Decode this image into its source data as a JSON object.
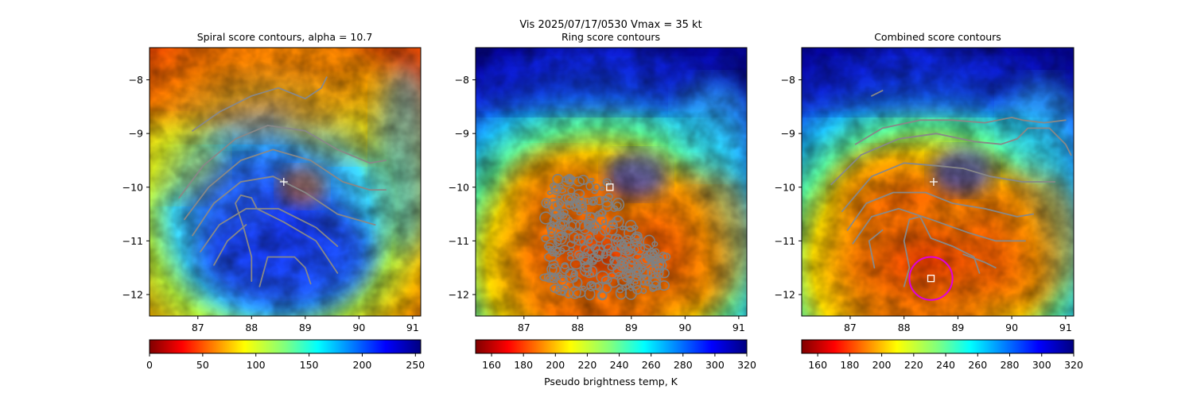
{
  "suptitle": "Vis  2025/07/17/0530    Vmax = 35 kt",
  "colorbar_shared_label": "Pseudo brightness temp, K",
  "chart_data": [
    {
      "type": "heatmap",
      "title": "Spiral score contours, alpha = 10.7",
      "xlim": [
        86.1,
        91.15
      ],
      "ylim": [
        -12.4,
        -7.4
      ],
      "xticks": [
        87,
        88,
        89,
        90,
        91
      ],
      "yticks": [
        -8,
        -9,
        -10,
        -11,
        -12
      ],
      "colormap": "jet_r",
      "colorbar": {
        "min": 0,
        "max": 255,
        "ticks": [
          0,
          50,
          100,
          150,
          200,
          250
        ],
        "label": ""
      },
      "markers": [
        {
          "shape": "plus",
          "lon": 88.6,
          "lat": -9.9,
          "color": "#ffffff"
        }
      ],
      "contour_color": "#888888",
      "contours": [
        [
          [
            86.9,
            -8.95
          ],
          [
            87.4,
            -8.6
          ],
          [
            88.0,
            -8.3
          ],
          [
            88.5,
            -8.15
          ],
          [
            89.0,
            -8.35
          ],
          [
            89.3,
            -8.15
          ],
          [
            89.4,
            -7.95
          ]
        ],
        [
          [
            86.65,
            -10.2
          ],
          [
            87.1,
            -9.6
          ],
          [
            87.7,
            -9.1
          ],
          [
            88.3,
            -8.85
          ],
          [
            89.0,
            -8.95
          ],
          [
            89.6,
            -9.3
          ],
          [
            90.2,
            -9.55
          ],
          [
            90.5,
            -9.5
          ]
        ],
        [
          [
            86.75,
            -10.6
          ],
          [
            87.2,
            -10.0
          ],
          [
            87.8,
            -9.5
          ],
          [
            88.4,
            -9.3
          ],
          [
            89.1,
            -9.5
          ],
          [
            89.7,
            -9.9
          ],
          [
            90.2,
            -10.05
          ],
          [
            90.5,
            -10.05
          ]
        ],
        [
          [
            86.9,
            -10.9
          ],
          [
            87.3,
            -10.3
          ],
          [
            87.8,
            -9.9
          ],
          [
            88.4,
            -9.8
          ],
          [
            89.0,
            -10.1
          ],
          [
            89.6,
            -10.5
          ],
          [
            90.3,
            -10.7
          ]
        ],
        [
          [
            87.05,
            -11.2
          ],
          [
            87.4,
            -10.7
          ],
          [
            87.9,
            -10.4
          ],
          [
            88.5,
            -10.4
          ],
          [
            89.2,
            -10.75
          ],
          [
            89.6,
            -11.1
          ]
        ],
        [
          [
            87.3,
            -11.45
          ],
          [
            87.55,
            -11.0
          ],
          [
            87.9,
            -10.7
          ]
        ],
        [
          [
            88.0,
            -11.75
          ],
          [
            88.0,
            -11.3
          ],
          [
            87.85,
            -10.75
          ],
          [
            87.7,
            -10.3
          ],
          [
            87.8,
            -10.15
          ],
          [
            88.0,
            -10.2
          ],
          [
            88.1,
            -10.4
          ],
          [
            88.6,
            -10.65
          ],
          [
            89.2,
            -11.0
          ],
          [
            89.6,
            -11.6
          ]
        ],
        [
          [
            88.15,
            -11.85
          ],
          [
            88.3,
            -11.3
          ],
          [
            88.8,
            -11.3
          ],
          [
            89.0,
            -11.5
          ],
          [
            89.1,
            -11.8
          ]
        ]
      ]
    },
    {
      "type": "heatmap",
      "title": "Ring score contours",
      "xlim": [
        86.1,
        91.15
      ],
      "ylim": [
        -12.4,
        -7.4
      ],
      "xticks": [
        87,
        88,
        89,
        90,
        91
      ],
      "yticks": [
        -8,
        -9,
        -10,
        -11,
        -12
      ],
      "colormap": "jet_r",
      "colorbar": {
        "min": 150,
        "max": 320,
        "ticks": [
          160,
          180,
          200,
          220,
          240,
          260,
          280,
          300,
          320
        ],
        "label": "Pseudo brightness temp, K"
      },
      "markers": [
        {
          "shape": "square",
          "lon": 88.6,
          "lat": -10.0,
          "color": "#ffffff"
        }
      ],
      "contour_color": "#808080",
      "ring_region": [
        [
          87.4,
          -10.0
        ],
        [
          87.7,
          -9.8
        ],
        [
          88.2,
          -9.85
        ],
        [
          88.6,
          -9.9
        ],
        [
          88.75,
          -10.3
        ],
        [
          88.9,
          -10.6
        ],
        [
          89.3,
          -10.9
        ],
        [
          89.7,
          -11.3
        ],
        [
          89.6,
          -11.9
        ],
        [
          88.6,
          -12.05
        ],
        [
          87.6,
          -12.0
        ],
        [
          87.4,
          -11.7
        ],
        [
          87.4,
          -10.8
        ]
      ]
    },
    {
      "type": "heatmap",
      "title": "Combined score contours",
      "xlim": [
        86.1,
        91.15
      ],
      "ylim": [
        -12.4,
        -7.4
      ],
      "xticks": [
        87,
        88,
        89,
        90,
        91
      ],
      "yticks": [
        -8,
        -9,
        -10,
        -11,
        -12
      ],
      "colormap": "jet_r",
      "colorbar": {
        "min": 150,
        "max": 320,
        "ticks": [
          160,
          180,
          200,
          220,
          240,
          260,
          280,
          300,
          320
        ],
        "label": ""
      },
      "markers": [
        {
          "shape": "plus",
          "lon": 88.55,
          "lat": -9.9,
          "color": "#ffffff"
        },
        {
          "shape": "square",
          "lon": 88.5,
          "lat": -11.7,
          "color": "#ffffff"
        }
      ],
      "circle": {
        "lon": 88.5,
        "lat": -11.7,
        "radius_deg": 0.4,
        "color": "#dd00dd"
      },
      "contour_color": "#888888",
      "contours": [
        [
          [
            87.4,
            -8.3
          ],
          [
            87.6,
            -8.2
          ]
        ],
        [
          [
            87.1,
            -9.2
          ],
          [
            87.6,
            -8.9
          ],
          [
            88.3,
            -8.75
          ],
          [
            88.9,
            -8.75
          ],
          [
            89.5,
            -8.8
          ],
          [
            90.0,
            -8.7
          ],
          [
            90.2,
            -8.75
          ],
          [
            90.6,
            -8.8
          ],
          [
            91.0,
            -8.75
          ]
        ],
        [
          [
            86.65,
            -9.95
          ],
          [
            87.2,
            -9.4
          ],
          [
            87.9,
            -9.1
          ],
          [
            88.6,
            -9.0
          ],
          [
            89.3,
            -9.15
          ],
          [
            89.8,
            -9.2
          ],
          [
            90.1,
            -9.1
          ],
          [
            90.3,
            -8.9
          ],
          [
            90.7,
            -8.9
          ],
          [
            91.0,
            -9.2
          ],
          [
            91.1,
            -9.4
          ]
        ],
        [
          [
            86.85,
            -10.45
          ],
          [
            87.4,
            -9.8
          ],
          [
            88.0,
            -9.55
          ],
          [
            88.6,
            -9.6
          ],
          [
            89.1,
            -9.65
          ],
          [
            89.6,
            -9.8
          ],
          [
            90.2,
            -9.9
          ],
          [
            90.8,
            -9.9
          ]
        ],
        [
          [
            86.95,
            -10.8
          ],
          [
            87.3,
            -10.3
          ],
          [
            87.8,
            -10.1
          ],
          [
            88.4,
            -10.1
          ],
          [
            88.9,
            -10.3
          ],
          [
            89.5,
            -10.4
          ],
          [
            90.1,
            -10.55
          ],
          [
            90.4,
            -10.5
          ]
        ],
        [
          [
            87.05,
            -11.05
          ],
          [
            87.4,
            -10.55
          ],
          [
            87.9,
            -10.4
          ],
          [
            88.5,
            -10.6
          ],
          [
            89.2,
            -10.85
          ],
          [
            89.7,
            -11.0
          ],
          [
            90.25,
            -11.0
          ]
        ],
        [
          [
            87.45,
            -11.5
          ],
          [
            87.35,
            -11.0
          ],
          [
            87.6,
            -10.8
          ]
        ],
        [
          [
            88.0,
            -11.85
          ],
          [
            88.1,
            -11.5
          ],
          [
            88.0,
            -11.0
          ],
          [
            88.1,
            -10.6
          ],
          [
            88.3,
            -10.55
          ],
          [
            88.4,
            -10.75
          ],
          [
            88.5,
            -10.95
          ],
          [
            88.9,
            -11.1
          ],
          [
            89.3,
            -11.3
          ],
          [
            89.4,
            -11.6
          ]
        ],
        [
          [
            89.1,
            -11.25
          ],
          [
            89.5,
            -11.4
          ],
          [
            89.7,
            -11.5
          ]
        ]
      ]
    }
  ]
}
